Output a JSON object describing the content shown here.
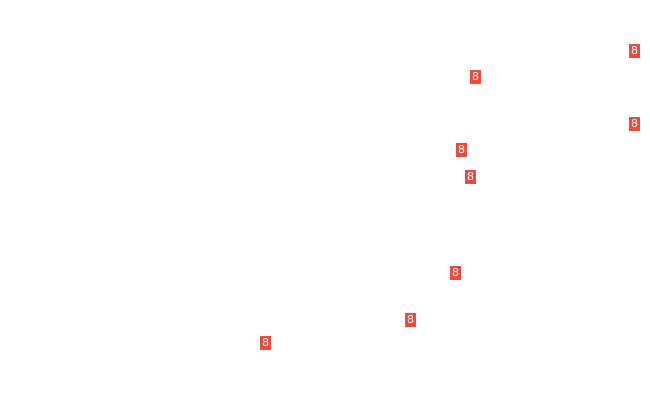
{
  "badge_color": "#ef4a3f",
  "badges": [
    {
      "label": "8"
    },
    {
      "label": "8"
    },
    {
      "label": "8"
    },
    {
      "label": "8"
    },
    {
      "label": "8"
    },
    {
      "label": "8"
    },
    {
      "label": "8"
    },
    {
      "label": "8"
    }
  ]
}
